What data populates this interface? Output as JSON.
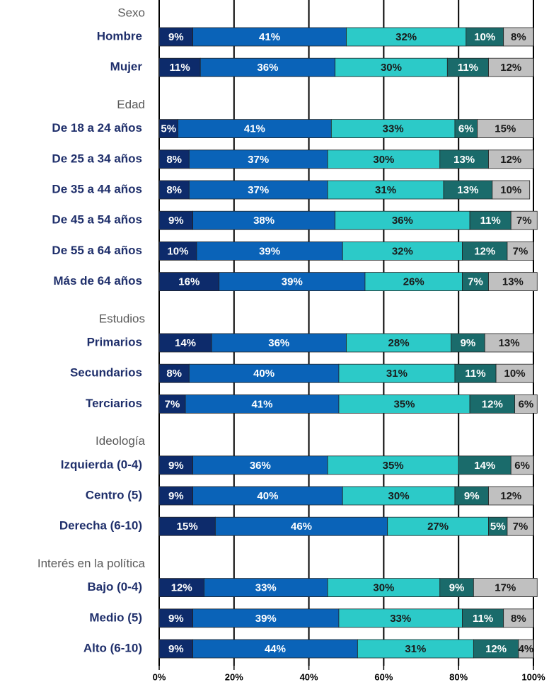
{
  "chart_data": {
    "type": "stacked_barh",
    "groups": [
      {
        "label": "Sexo",
        "categories": [
          "Hombre",
          "Mujer"
        ]
      },
      {
        "label": "Edad",
        "categories": [
          "De 18 a 24 años",
          "De 25 a 34 años",
          "De 35 a 44 años",
          "De 45 a 54 años",
          "De 55 a 64 años",
          "Más de 64 años"
        ]
      },
      {
        "label": "Estudios",
        "categories": [
          "Primarios",
          "Secundarios",
          "Terciarios"
        ]
      },
      {
        "label": "Ideología",
        "categories": [
          "Izquierda (0-4)",
          "Centro (5)",
          "Derecha (6-10)"
        ]
      },
      {
        "label": "Interés en la política",
        "categories": [
          "Bajo (0-4)",
          "Medio (5)",
          "Alto (6-10)"
        ]
      }
    ],
    "series": [
      {
        "color": "#0d2b6b",
        "label_color": "#ffffff",
        "values": [
          9,
          11,
          5,
          8,
          8,
          9,
          10,
          16,
          14,
          8,
          7,
          9,
          9,
          15,
          12,
          9,
          9
        ],
        "value_labels": [
          "9%",
          "11%",
          "5%",
          "8%",
          "8%",
          "9%",
          "10%",
          "16%",
          "14%",
          "8%",
          "7%",
          "9%",
          "9%",
          "15%",
          "12%",
          "9%",
          "9%"
        ]
      },
      {
        "color": "#0a63b8",
        "label_color": "#ffffff",
        "values": [
          41,
          36,
          41,
          37,
          37,
          38,
          39,
          39,
          36,
          40,
          41,
          36,
          40,
          46,
          33,
          39,
          44
        ],
        "value_labels": [
          "41%",
          "36%",
          "41%",
          "37%",
          "37%",
          "38%",
          "39%",
          "39%",
          "36%",
          "40%",
          "41%",
          "36%",
          "40%",
          "46%",
          "33%",
          "39%",
          "44%"
        ]
      },
      {
        "color": "#2ccac8",
        "label_color": "#1a1a1a",
        "values": [
          32,
          30,
          33,
          30,
          31,
          36,
          32,
          26,
          28,
          31,
          35,
          35,
          30,
          27,
          30,
          33,
          31
        ],
        "value_labels": [
          "32%",
          "30%",
          "33%",
          "30%",
          "31%",
          "36%",
          "32%",
          "26%",
          "28%",
          "31%",
          "35%",
          "35%",
          "30%",
          "27%",
          "30%",
          "33%",
          "31%"
        ]
      },
      {
        "color": "#1a6b6b",
        "label_color": "#ffffff",
        "values": [
          10,
          11,
          6,
          13,
          13,
          11,
          12,
          7,
          9,
          11,
          12,
          14,
          9,
          5,
          9,
          11,
          12
        ],
        "value_labels": [
          "10%",
          "11%",
          "6%",
          "13%",
          "13%",
          "11%",
          "12%",
          "7%",
          "9%",
          "11%",
          "12%",
          "14%",
          "9%",
          "5%",
          "9%",
          "11%",
          "12%"
        ]
      },
      {
        "color": "#c0c0c0",
        "label_color": "#1a1a1a",
        "values": [
          8,
          12,
          15,
          12,
          10,
          7,
          7,
          13,
          13,
          10,
          6,
          6,
          12,
          7,
          17,
          8,
          4
        ],
        "value_labels": [
          "8%",
          "12%",
          "15%",
          "12%",
          "10%",
          "7%",
          "7%",
          "13%",
          "13%",
          "10%",
          "6%",
          "6%",
          "12%",
          "7%",
          "17%",
          "8%",
          "4%"
        ]
      }
    ],
    "xlim": [
      0,
      100
    ],
    "xticks": [
      {
        "value": 0,
        "label": "0%"
      },
      {
        "value": 20,
        "label": "20%"
      },
      {
        "value": 40,
        "label": "40%"
      },
      {
        "value": 60,
        "label": "60%"
      },
      {
        "value": 80,
        "label": "80%"
      },
      {
        "value": 100,
        "label": "100%"
      }
    ],
    "grid": true
  }
}
